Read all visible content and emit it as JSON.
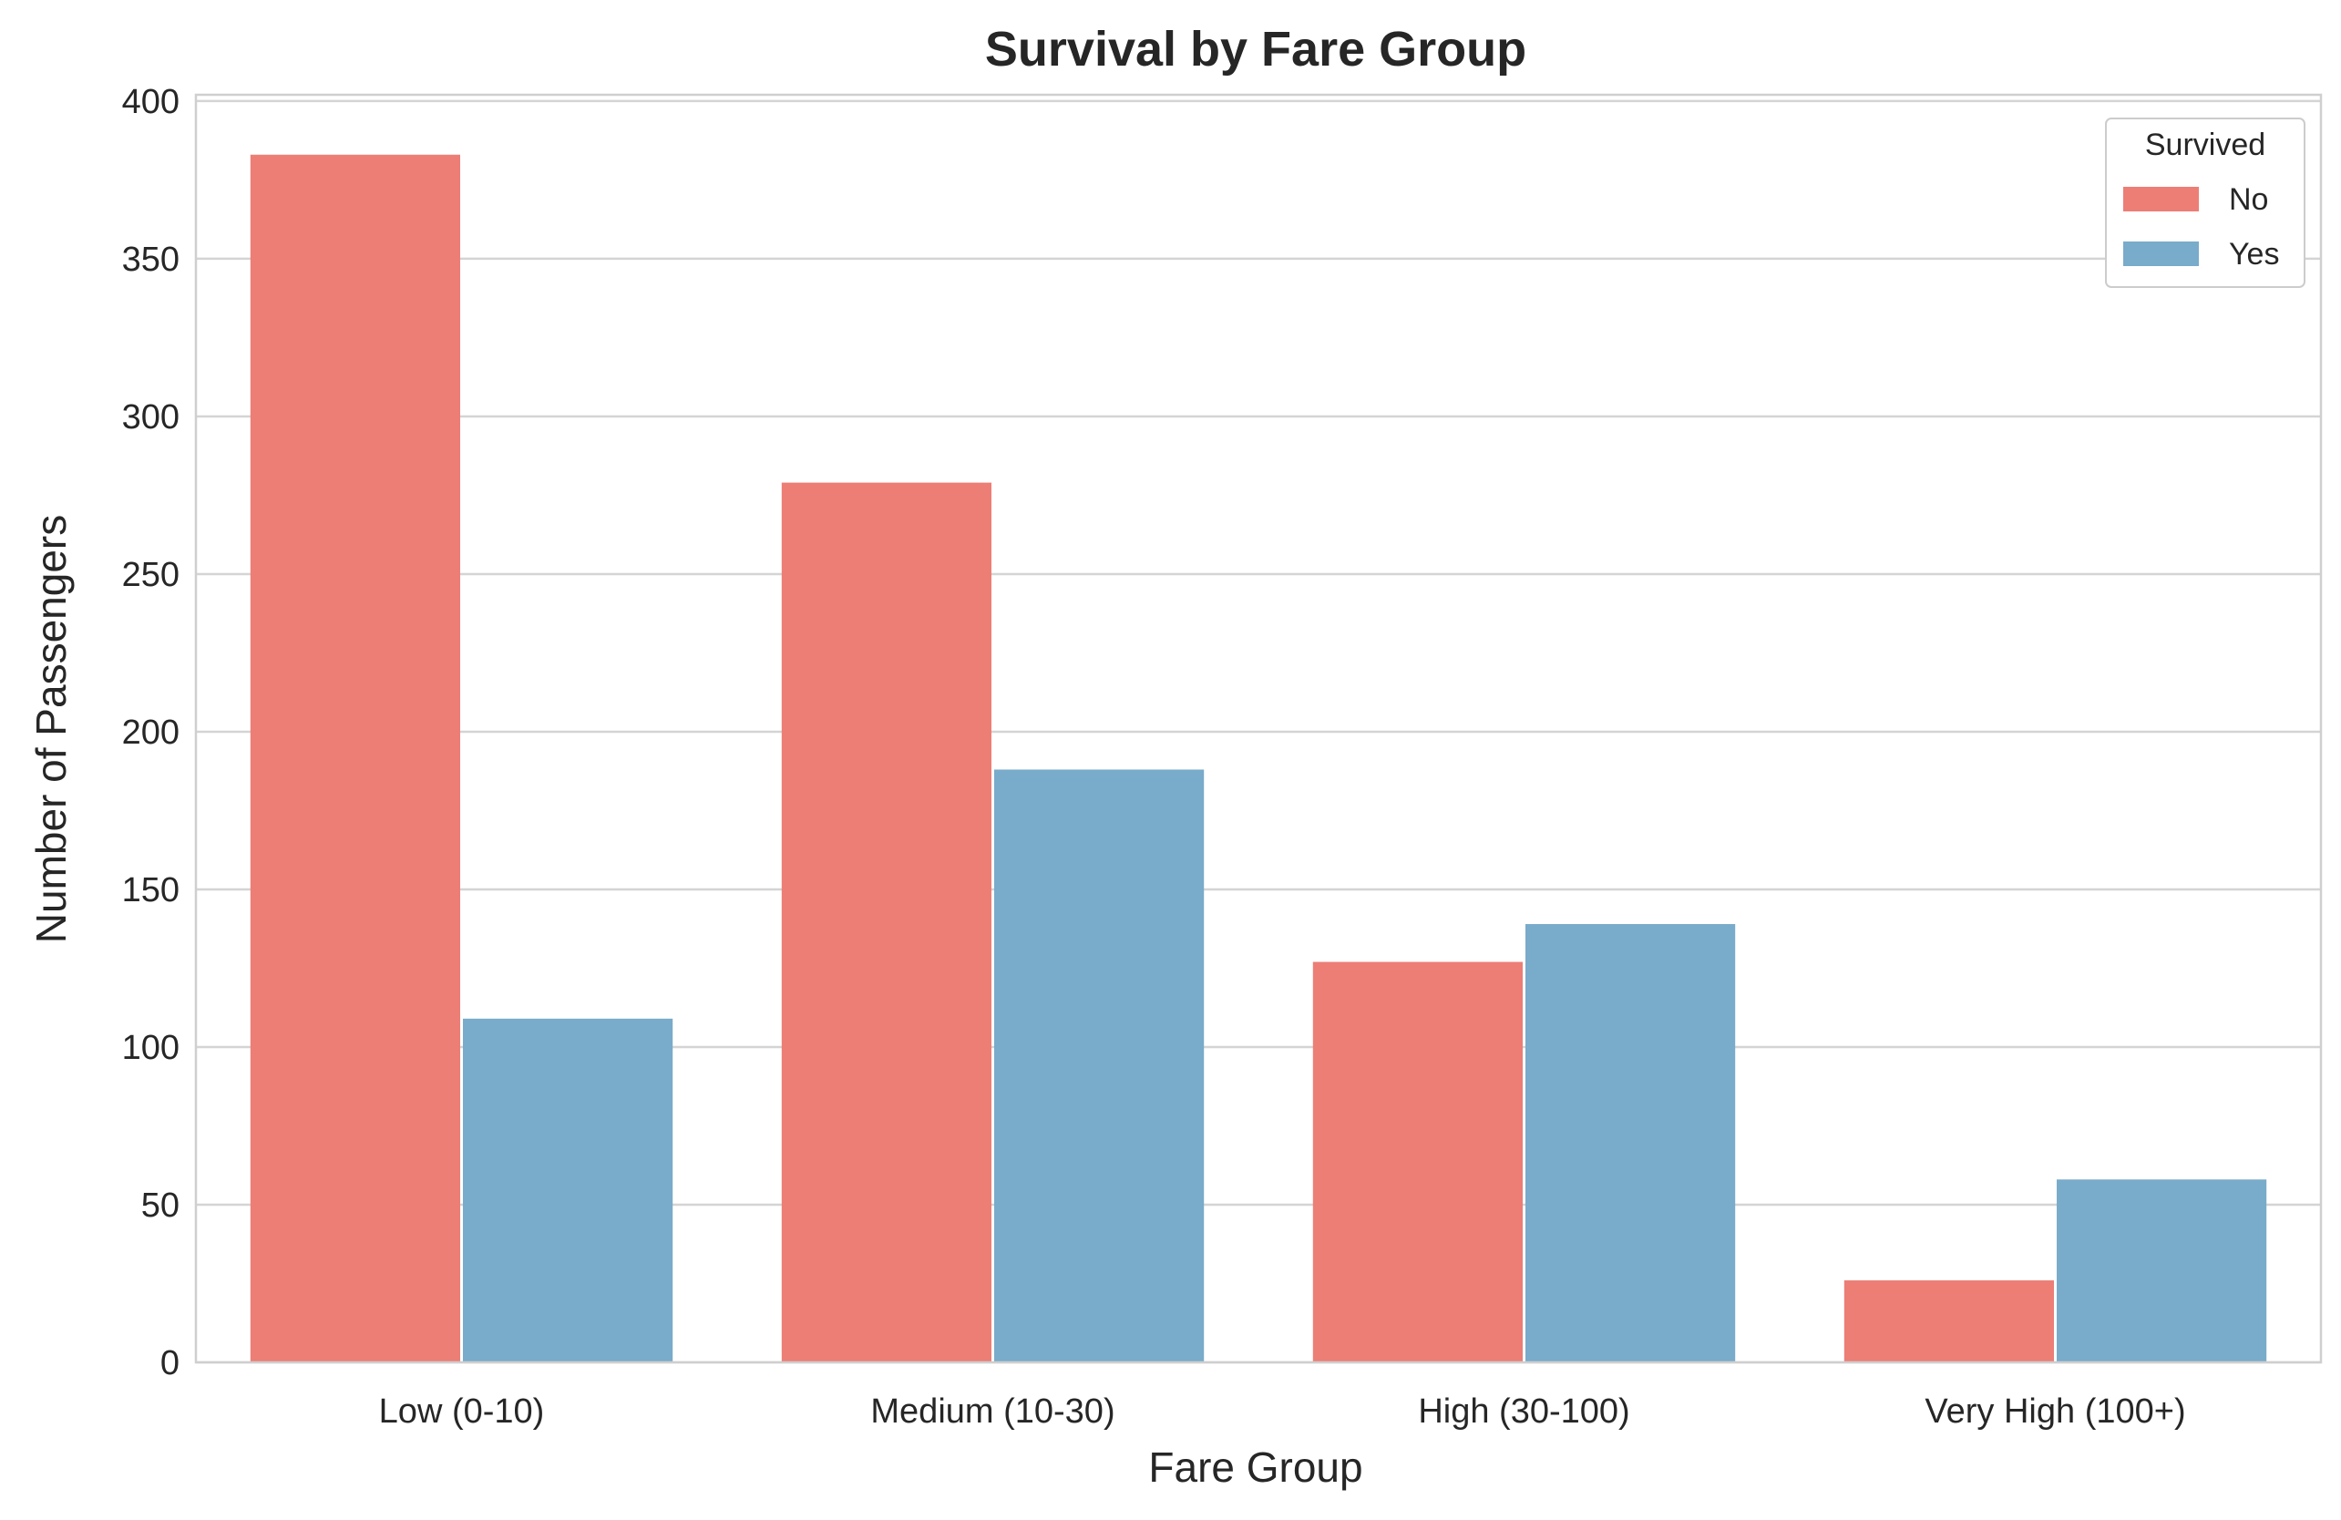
{
  "chart_data": {
    "type": "bar",
    "title": "Survival by Fare Group",
    "xlabel": "Fare Group",
    "ylabel": "Number of Passengers",
    "categories": [
      "Low (0-10)",
      "Medium (10-30)",
      "High (30-100)",
      "Very High (100+)"
    ],
    "series": [
      {
        "name": "No",
        "color": "#EC7E76",
        "values": [
          383,
          279,
          127,
          26
        ]
      },
      {
        "name": "Yes",
        "color": "#79ABCA",
        "values": [
          109,
          188,
          139,
          58
        ]
      }
    ],
    "ylim": [
      0,
      402
    ],
    "yticks": [
      0,
      50,
      100,
      150,
      200,
      250,
      300,
      350,
      400
    ],
    "grid": "horizontal",
    "legend": {
      "title": "Survived",
      "placement": "top-right"
    }
  }
}
